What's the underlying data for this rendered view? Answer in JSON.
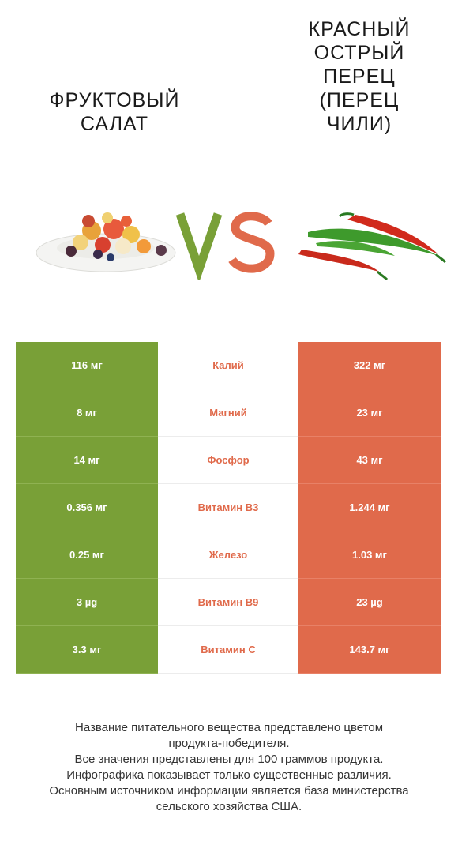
{
  "titles": {
    "left": "ФРУКТОВЫЙ\nСАЛАТ",
    "right": "КРАСНЫЙ\nОСТРЫЙ\nПЕРЕЦ\n(ПЕРЕЦ\nЧИЛИ)"
  },
  "colors": {
    "left_winner": "#79a037",
    "right_winner": "#e06a4b",
    "vs_v": "#79a037",
    "vs_s": "#e06a4b"
  },
  "rows": [
    {
      "nutrient": "Калий",
      "left": "116 мг",
      "right": "322 мг"
    },
    {
      "nutrient": "Магний",
      "left": "8 мг",
      "right": "23 мг"
    },
    {
      "nutrient": "Фосфор",
      "left": "14 мг",
      "right": "43 мг"
    },
    {
      "nutrient": "Витамин B3",
      "left": "0.356 мг",
      "right": "1.244 мг"
    },
    {
      "nutrient": "Железо",
      "left": "0.25 мг",
      "right": "1.03 мг"
    },
    {
      "nutrient": "Витамин B9",
      "left": "3 µg",
      "right": "23 µg"
    },
    {
      "nutrient": "Витамин C",
      "left": "3.3 мг",
      "right": "143.7 мг"
    }
  ],
  "footer": [
    "Название питательного вещества представлено цветом",
    "продукта-победителя.",
    "Все значения представлены для 100 граммов продукта.",
    "Инфографика показывает только существенные различия.",
    "Основным источником информации является база министерства",
    "сельского хозяйства США."
  ]
}
